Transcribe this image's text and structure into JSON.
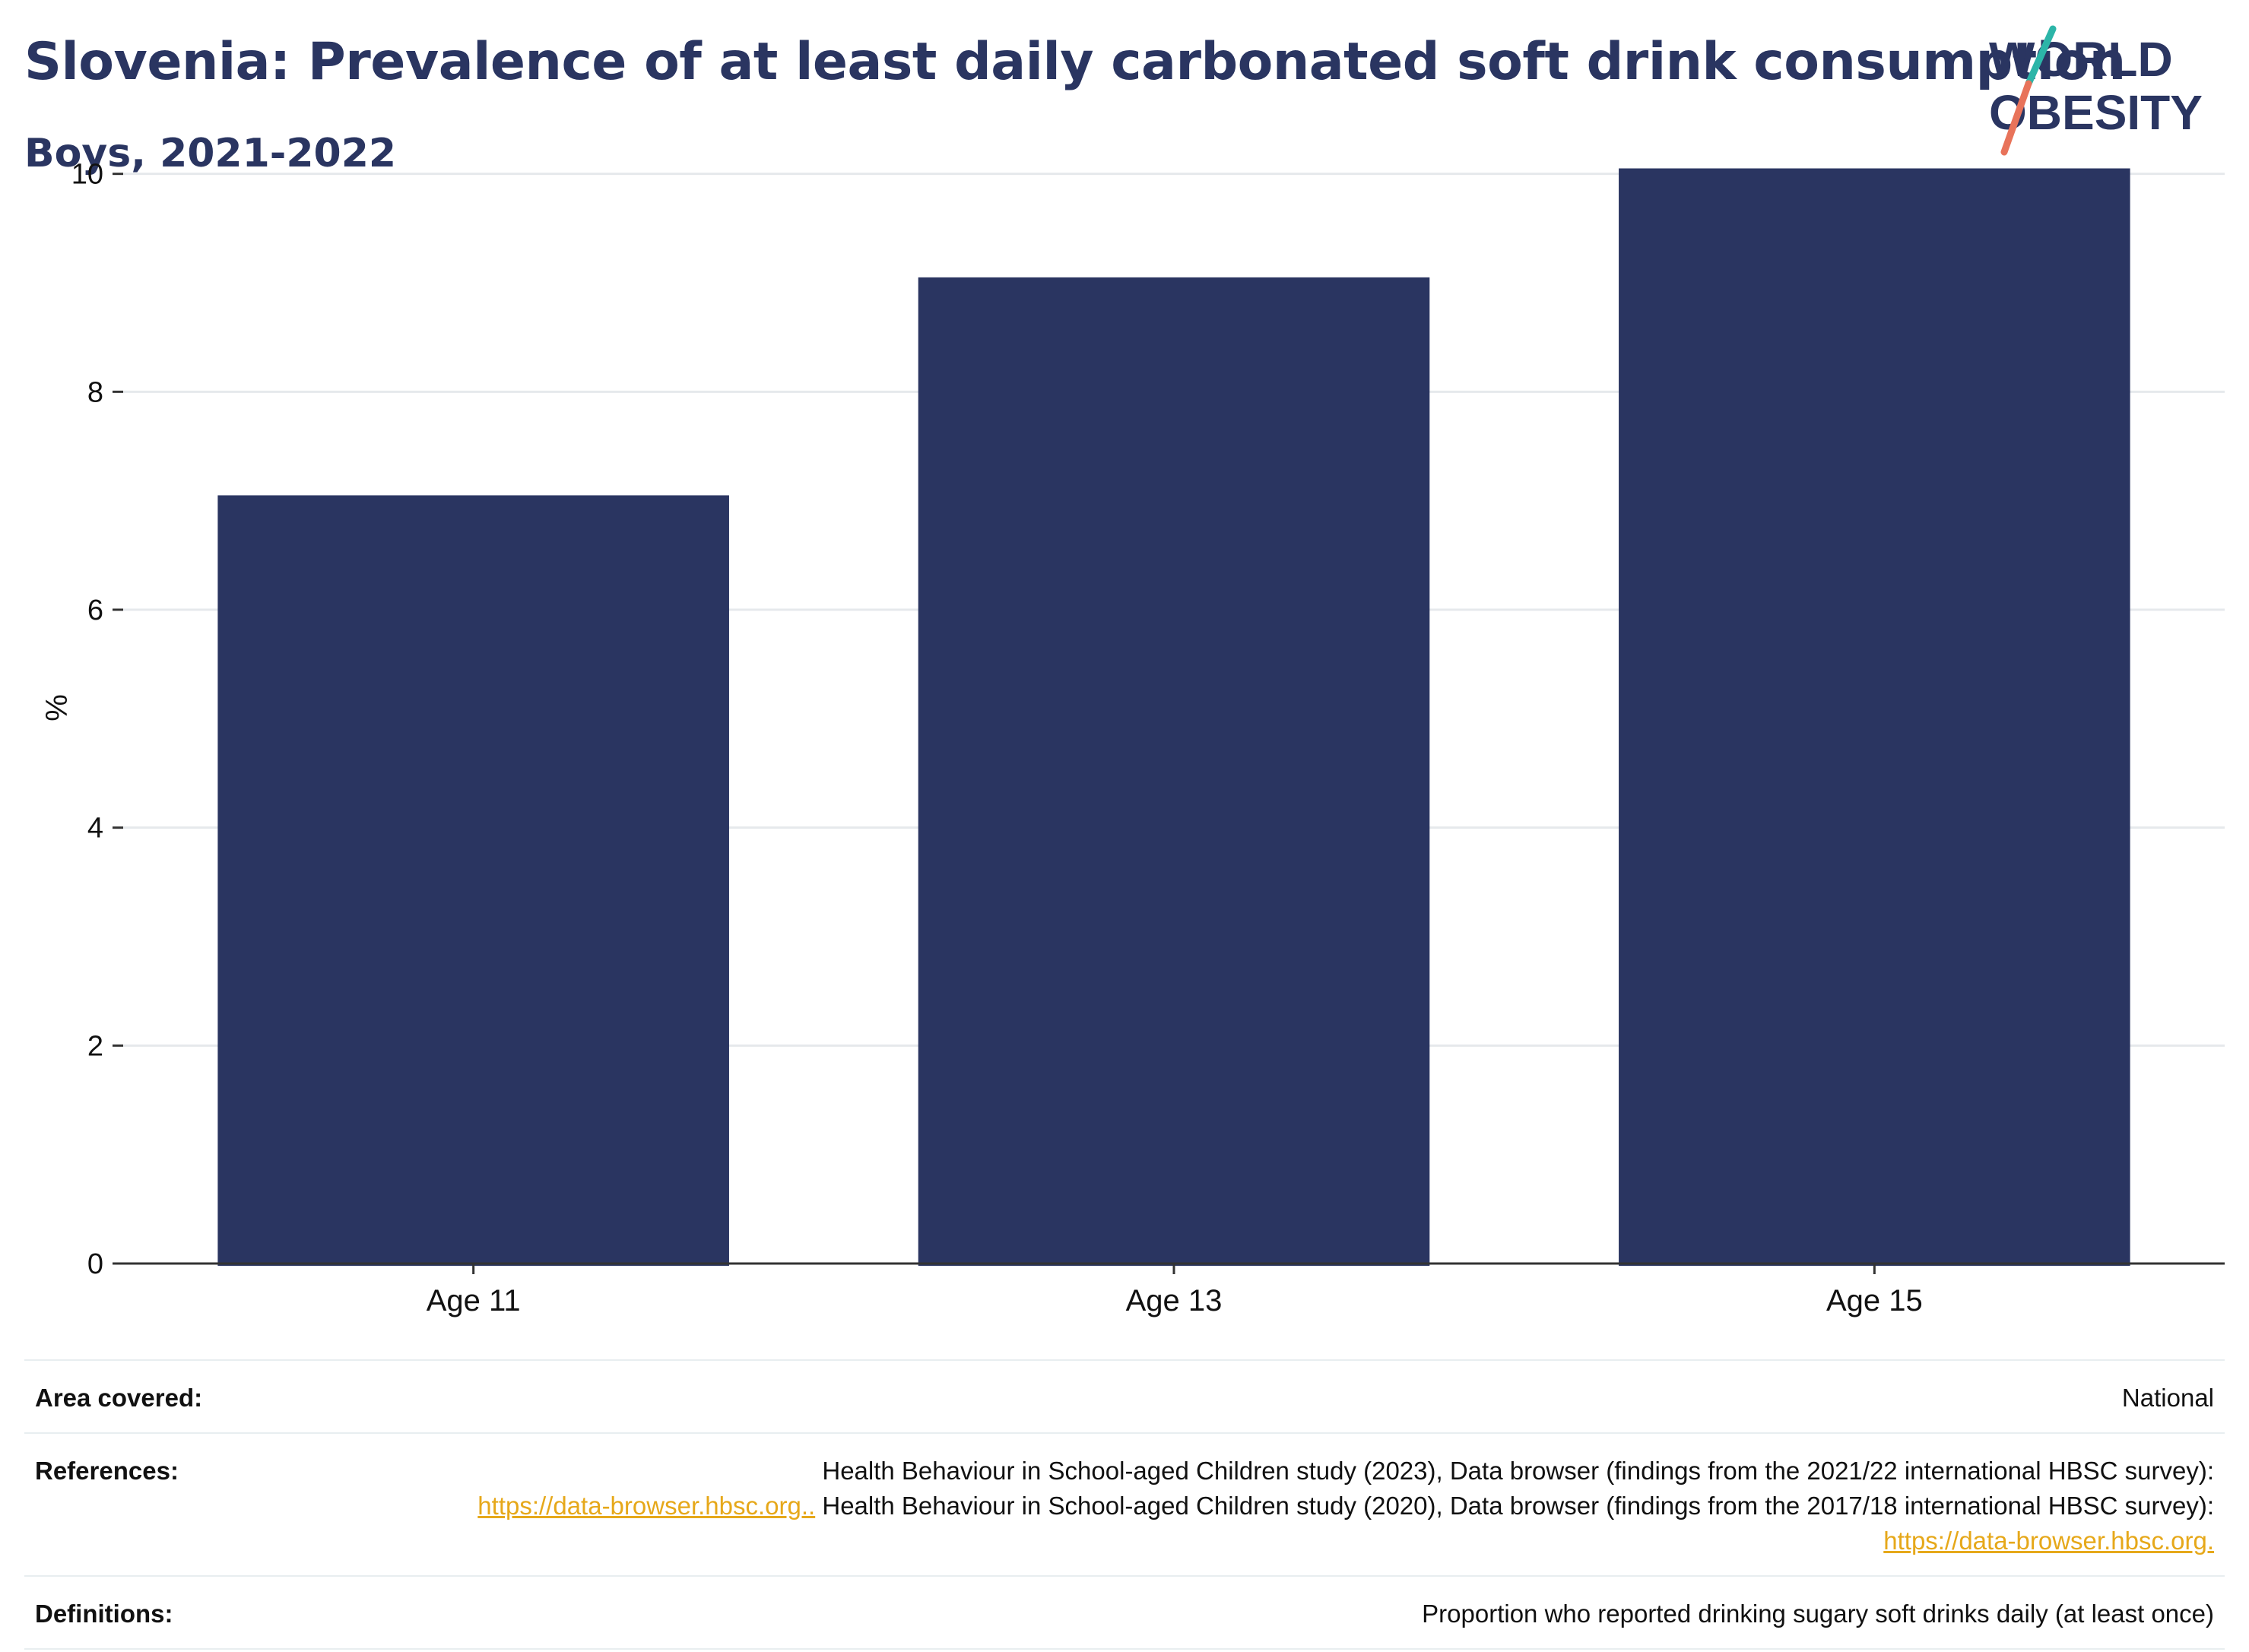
{
  "header": {
    "title": "Slovenia: Prevalence of at least daily carbonated soft drink consumption",
    "subtitle": "Boys, 2021-2022"
  },
  "logo": {
    "line1": "WORLD",
    "line2": "OBESITY",
    "colors": {
      "text": "#2a3561",
      "slash_top": "#2cb5a8",
      "slash_bottom": "#e8735a"
    }
  },
  "colors": {
    "bar": "#2a3561",
    "grid": "#e6e9ec",
    "axis": "#333333",
    "link": "#e6a81a"
  },
  "chart_data": {
    "type": "bar",
    "categories": [
      "Age 11",
      "Age 13",
      "Age 15"
    ],
    "values": [
      7.05,
      9.05,
      10.05
    ],
    "ylabel": "%",
    "ylim": [
      0,
      10.2
    ],
    "yticks": [
      0,
      2,
      4,
      6,
      8,
      10
    ],
    "grid": true
  },
  "meta": {
    "area_label": "Area covered:",
    "area_value": "National",
    "references_label": "References:",
    "ref_text_1": "Health Behaviour in School-aged Children study (2023), Data browser (findings from the 2021/22 international HBSC survey):",
    "ref_link_1": "https://data-browser.hbsc.org..",
    "ref_text_2": " Health Behaviour in School-aged Children study (2020), Data browser (findings from the 2017/18 international HBSC survey): ",
    "ref_link_2": "https://data-browser.hbsc.org.",
    "definitions_label": "Definitions:",
    "definitions_value": "Proportion who reported drinking sugary soft drinks daily (at least once)"
  }
}
